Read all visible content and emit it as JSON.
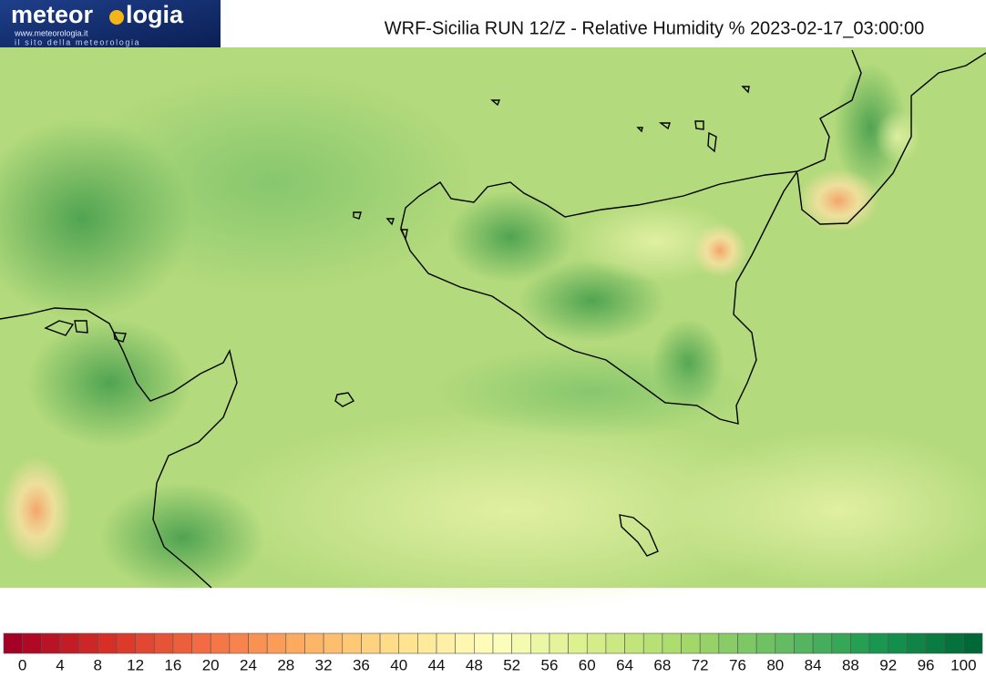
{
  "header": {
    "logo_left": "meteor",
    "logo_right": "logia",
    "logo_url": "www.meteorologia.it",
    "logo_tagline": "il sito della meteorologia",
    "title": "WRF-Sicilia RUN 12/Z - Relative Humidity % 2023-02-17_03:00:00"
  },
  "colorbar": {
    "cells": 52,
    "palette": [
      "#a50026",
      "#d73027",
      "#f46d43",
      "#fdae61",
      "#fee08b",
      "#ffffbf",
      "#d9ef8b",
      "#a6d96a",
      "#66bd63",
      "#1a9850",
      "#006837"
    ],
    "ticks": [
      0,
      4,
      8,
      12,
      16,
      20,
      24,
      28,
      32,
      36,
      40,
      44,
      48,
      52,
      56,
      60,
      64,
      68,
      72,
      76,
      80,
      84,
      88,
      92,
      96,
      100
    ]
  }
}
